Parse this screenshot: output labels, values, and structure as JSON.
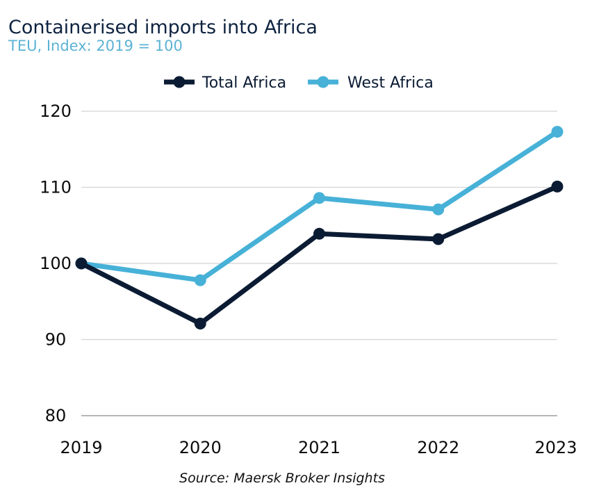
{
  "chart_data": {
    "type": "line",
    "title": "Containerised imports into Africa",
    "subtitle": "TEU, Index: 2019 = 100",
    "x": [
      "2019",
      "2020",
      "2021",
      "2022",
      "2023"
    ],
    "series": [
      {
        "name": "Total Africa",
        "color": "#0b1b33",
        "values": [
          100,
          92.1,
          103.9,
          103.2,
          110.1
        ]
      },
      {
        "name": "West Africa",
        "color": "#47b1d7",
        "values": [
          100,
          97.8,
          108.6,
          107.1,
          117.3
        ]
      }
    ],
    "ylim": [
      80,
      120
    ],
    "yticks": [
      80,
      90,
      100,
      110,
      120
    ],
    "grid": true,
    "legend": "top-center",
    "source": "Source: Maersk Broker Insights"
  }
}
